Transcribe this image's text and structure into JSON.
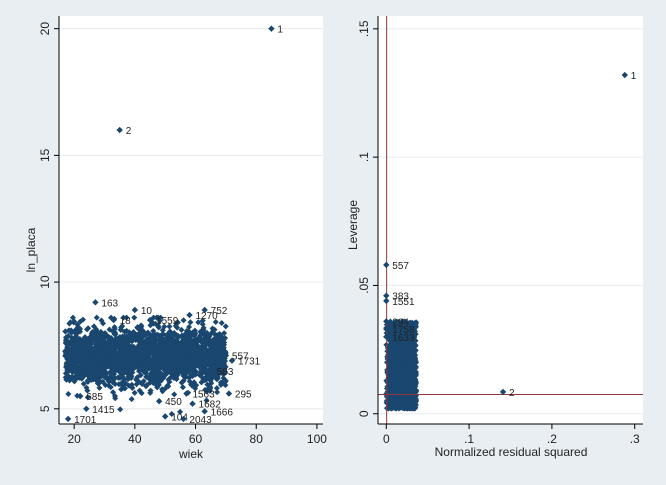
{
  "colors": {
    "background": "#e8eef2",
    "panel": "#ffffff",
    "marker": "#1a476f",
    "reference_line": "#90353b",
    "grid": "#e6ecef"
  },
  "chart_data": [
    {
      "type": "scatter",
      "xlabel": "wiek",
      "ylabel": "ln_placa",
      "xlim": [
        15,
        102
      ],
      "ylim": [
        4.4,
        20.5
      ],
      "xticks": [
        20,
        40,
        60,
        80,
        100
      ],
      "yticks": [
        5,
        10,
        15,
        20
      ],
      "ytick_rotation": "vertical",
      "grid": "horizontal",
      "marker": "diamond",
      "labeled_points": [
        {
          "x": 85,
          "y": 20.0,
          "label": "1"
        },
        {
          "x": 35,
          "y": 16.0,
          "label": "2"
        },
        {
          "x": 27,
          "y": 9.2,
          "label": "163"
        },
        {
          "x": 40,
          "y": 8.9,
          "label": "10"
        },
        {
          "x": 63,
          "y": 8.9,
          "label": "752"
        },
        {
          "x": 58,
          "y": 8.7,
          "label": "1270"
        },
        {
          "x": 45,
          "y": 8.5,
          "label": "1559"
        },
        {
          "x": 33,
          "y": 8.5,
          "label": "18"
        },
        {
          "x": 70,
          "y": 7.1,
          "label": "557"
        },
        {
          "x": 72,
          "y": 6.9,
          "label": "1731"
        },
        {
          "x": 65,
          "y": 6.5,
          "label": "583"
        },
        {
          "x": 71,
          "y": 5.6,
          "label": "295"
        },
        {
          "x": 57,
          "y": 5.6,
          "label": "1563"
        },
        {
          "x": 48,
          "y": 5.3,
          "label": "450"
        },
        {
          "x": 59,
          "y": 5.2,
          "label": "1682"
        },
        {
          "x": 63,
          "y": 4.9,
          "label": "1666"
        },
        {
          "x": 50,
          "y": 4.7,
          "label": "104"
        },
        {
          "x": 56,
          "y": 4.6,
          "label": "2043"
        },
        {
          "x": 18,
          "y": 4.6,
          "label": "1701"
        },
        {
          "x": 22,
          "y": 5.5,
          "label": "685"
        },
        {
          "x": 24,
          "y": 5.0,
          "label": "1415"
        }
      ],
      "cloud": {
        "x_range": [
          17,
          70
        ],
        "y_mean": 7.1,
        "y_sd": 0.55,
        "n": 2200
      }
    },
    {
      "type": "scatter",
      "xlabel": "Normalized residual squared",
      "ylabel": "Leverage",
      "xlim": [
        -0.01,
        0.31
      ],
      "ylim": [
        -0.004,
        0.155
      ],
      "xticks": [
        0,
        0.1,
        0.2,
        0.3
      ],
      "xtick_labels": [
        "0",
        ".1",
        ".2",
        ".3"
      ],
      "yticks": [
        0,
        0.05,
        0.1,
        0.15
      ],
      "ytick_labels": [
        "0",
        ".05",
        ".1",
        ".15"
      ],
      "ytick_rotation": "vertical",
      "grid": "horizontal",
      "marker": "diamond",
      "reference_lines": {
        "vertical_x": 0.00045,
        "horizontal_y": 0.0075
      },
      "labeled_points": [
        {
          "x": 0.288,
          "y": 0.132,
          "label": "1"
        },
        {
          "x": 0.141,
          "y": 0.0085,
          "label": "2"
        },
        {
          "x": 0.0,
          "y": 0.058,
          "label": "557"
        },
        {
          "x": 0.0,
          "y": 0.046,
          "label": "383"
        },
        {
          "x": 0.0,
          "y": 0.044,
          "label": "1551"
        },
        {
          "x": 0.0,
          "y": 0.036,
          "label": "294"
        },
        {
          "x": 0.0,
          "y": 0.033,
          "label": "1758"
        },
        {
          "x": 0.0,
          "y": 0.03,
          "label": "1633"
        }
      ],
      "cloud": {
        "x_range": [
          0,
          0.036
        ],
        "y_range": [
          0.002,
          0.036
        ],
        "n": 1400
      }
    }
  ]
}
